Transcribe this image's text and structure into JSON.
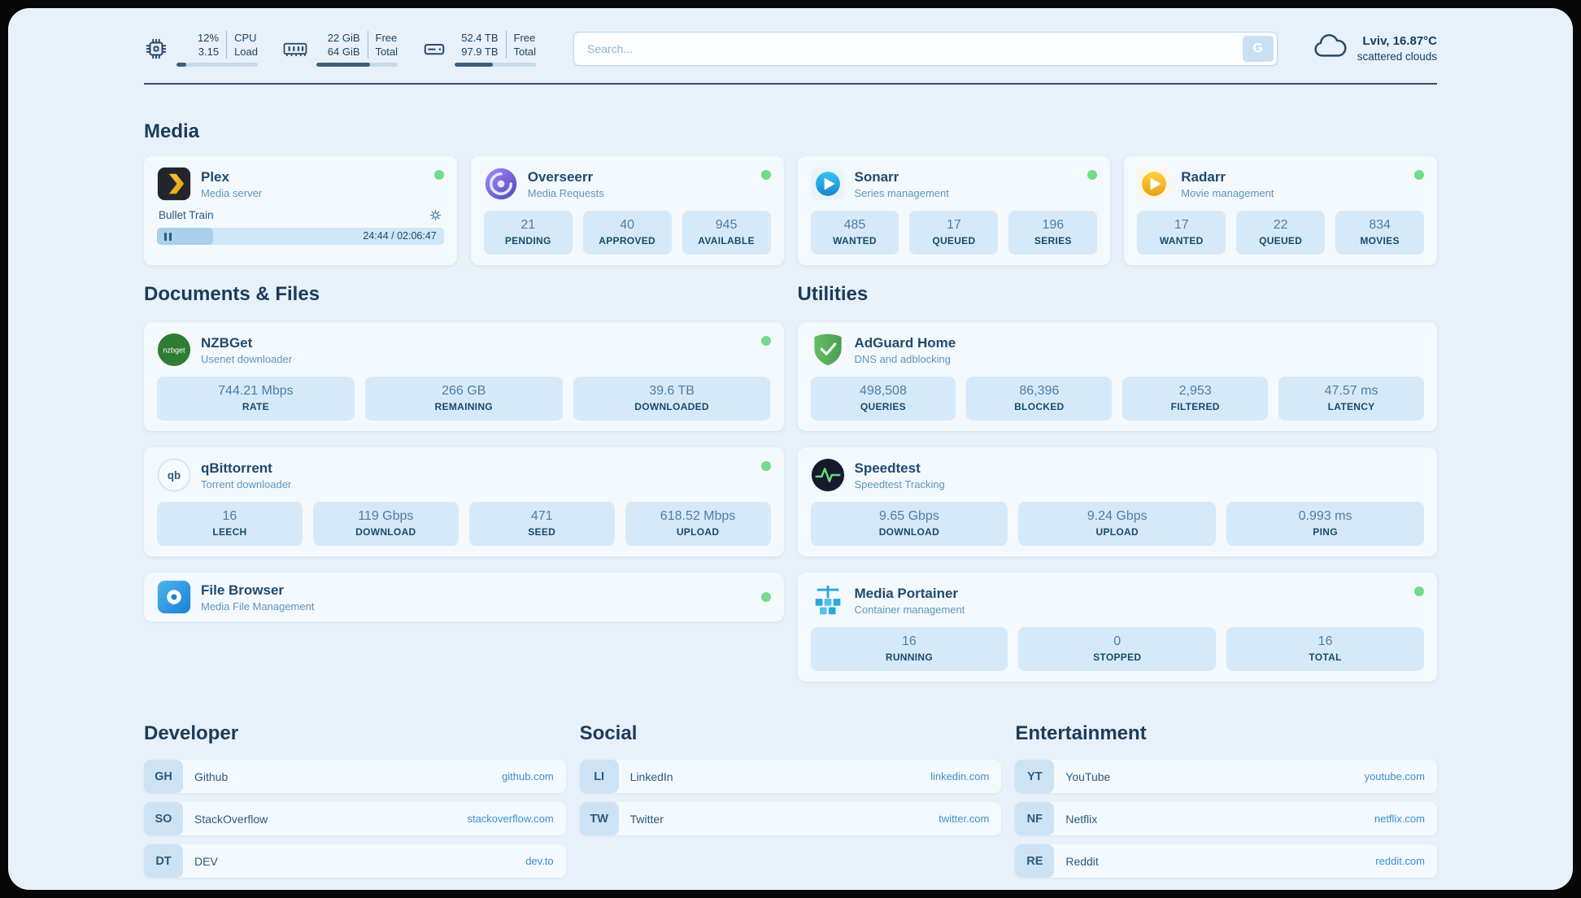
{
  "colors": {
    "page_bg": "#e8f1f9",
    "card_bg": "#f3f9fd",
    "stat_box_bg": "#d6e9f8",
    "accent_dark": "#1b3b59",
    "subtitle_blue": "#6095ba",
    "link_blue": "#3f8ecc",
    "status_green": "#74da8c",
    "bar_fill": "#3d5f7c"
  },
  "header": {
    "cpu": {
      "value1": "12%",
      "value2": "3.15",
      "label1": "CPU",
      "label2": "Load",
      "percent": 12
    },
    "ram": {
      "value1": "22 GiB",
      "value2": "64 GiB",
      "label1": "Free",
      "label2": "Total",
      "percent": 66
    },
    "disk": {
      "value1": "52.4 TB",
      "value2": "97.9 TB",
      "label1": "Free",
      "label2": "Total",
      "percent": 47
    },
    "search": {
      "placeholder": "Search...",
      "engine_label": "G"
    },
    "weather": {
      "location": "Lviv, 16.87°C",
      "condition": "scattered clouds"
    }
  },
  "media": {
    "title": "Media",
    "plex": {
      "name": "Plex",
      "subtitle": "Media server",
      "now_playing": "Bullet Train",
      "time": "24:44 / 02:06:47",
      "progress": 19.5
    },
    "overseerr": {
      "name": "Overseerr",
      "subtitle": "Media Requests",
      "stats": [
        {
          "value": "21",
          "label": "PENDING"
        },
        {
          "value": "40",
          "label": "APPROVED"
        },
        {
          "value": "945",
          "label": "AVAILABLE"
        }
      ]
    },
    "sonarr": {
      "name": "Sonarr",
      "subtitle": "Series management",
      "stats": [
        {
          "value": "485",
          "label": "WANTED"
        },
        {
          "value": "17",
          "label": "QUEUED"
        },
        {
          "value": "196",
          "label": "SERIES"
        }
      ]
    },
    "radarr": {
      "name": "Radarr",
      "subtitle": "Movie management",
      "stats": [
        {
          "value": "17",
          "label": "WANTED"
        },
        {
          "value": "22",
          "label": "QUEUED"
        },
        {
          "value": "834",
          "label": "MOVIES"
        }
      ]
    }
  },
  "documents": {
    "title": "Documents & Files",
    "nzbget": {
      "name": "NZBGet",
      "subtitle": "Usenet downloader",
      "stats": [
        {
          "value": "744.21 Mbps",
          "label": "RATE"
        },
        {
          "value": "266 GB",
          "label": "REMAINING"
        },
        {
          "value": "39.6 TB",
          "label": "DOWNLOADED"
        }
      ]
    },
    "qbittorrent": {
      "name": "qBittorrent",
      "subtitle": "Torrent downloader",
      "stats": [
        {
          "value": "16",
          "label": "LEECH"
        },
        {
          "value": "119 Gbps",
          "label": "DOWNLOAD"
        },
        {
          "value": "471",
          "label": "SEED"
        },
        {
          "value": "618.52 Mbps",
          "label": "UPLOAD"
        }
      ]
    },
    "filebrowser": {
      "name": "File Browser",
      "subtitle": "Media File Management"
    }
  },
  "utilities": {
    "title": "Utilities",
    "adguard": {
      "name": "AdGuard Home",
      "subtitle": "DNS and adblocking",
      "stats": [
        {
          "value": "498,508",
          "label": "QUERIES"
        },
        {
          "value": "86,396",
          "label": "BLOCKED"
        },
        {
          "value": "2,953",
          "label": "FILTERED"
        },
        {
          "value": "47.57 ms",
          "label": "LATENCY"
        }
      ]
    },
    "speedtest": {
      "name": "Speedtest",
      "subtitle": "Speedtest Tracking",
      "stats": [
        {
          "value": "9.65 Gbps",
          "label": "DOWNLOAD"
        },
        {
          "value": "9.24 Gbps",
          "label": "UPLOAD"
        },
        {
          "value": "0.993 ms",
          "label": "PING"
        }
      ]
    },
    "portainer": {
      "name": "Media Portainer",
      "subtitle": "Container management",
      "stats": [
        {
          "value": "16",
          "label": "RUNNING"
        },
        {
          "value": "0",
          "label": "STOPPED"
        },
        {
          "value": "16",
          "label": "TOTAL"
        }
      ]
    }
  },
  "bookmarks": {
    "developer": {
      "title": "Developer",
      "items": [
        {
          "abbr": "GH",
          "name": "Github",
          "link": "github.com"
        },
        {
          "abbr": "SO",
          "name": "StackOverflow",
          "link": "stackoverflow.com"
        },
        {
          "abbr": "DT",
          "name": "DEV",
          "link": "dev.to"
        }
      ]
    },
    "social": {
      "title": "Social",
      "items": [
        {
          "abbr": "LI",
          "name": "LinkedIn",
          "link": "linkedin.com"
        },
        {
          "abbr": "TW",
          "name": "Twitter",
          "link": "twitter.com"
        }
      ]
    },
    "entertainment": {
      "title": "Entertainment",
      "items": [
        {
          "abbr": "YT",
          "name": "YouTube",
          "link": "youtube.com"
        },
        {
          "abbr": "NF",
          "name": "Netflix",
          "link": "netflix.com"
        },
        {
          "abbr": "RE",
          "name": "Reddit",
          "link": "reddit.com"
        }
      ]
    }
  }
}
